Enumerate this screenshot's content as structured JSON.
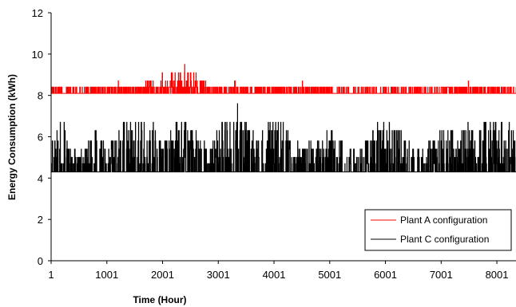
{
  "chart_data": {
    "type": "line",
    "title": "",
    "xlabel": "Time (Hour)",
    "ylabel": "Energy Consumption (kWh)",
    "xlim": [
      1,
      8760
    ],
    "ylim": [
      0,
      12
    ],
    "x_ticks": [
      "1",
      "1001",
      "2001",
      "3001",
      "4001",
      "5001",
      "6001",
      "7001",
      "8001"
    ],
    "y_ticks": [
      "0",
      "2",
      "4",
      "6",
      "8",
      "10",
      "12"
    ],
    "grid": false,
    "legend_position": "bottom-right",
    "series": [
      {
        "name": "Plant A configuration",
        "color": "#ff0000",
        "pattern": {
          "base": 8.1,
          "levels": [
            8.1,
            8.4,
            8.7,
            9.1
          ],
          "max": 9.5,
          "max_x": 2400,
          "sample": [
            [
              1,
              8.7
            ],
            [
              100,
              8.4
            ],
            [
              200,
              8.1
            ],
            [
              400,
              8.4
            ],
            [
              600,
              8.1
            ],
            [
              700,
              8.7
            ],
            [
              1001,
              8.4
            ],
            [
              1200,
              8.7
            ],
            [
              1500,
              8.4
            ],
            [
              1700,
              8.7
            ],
            [
              2001,
              9.1
            ],
            [
              2400,
              9.5
            ],
            [
              2800,
              8.7
            ],
            [
              3001,
              8.4
            ],
            [
              3300,
              8.7
            ],
            [
              3500,
              8.4
            ],
            [
              3800,
              8.7
            ],
            [
              4001,
              8.4
            ],
            [
              4500,
              8.7
            ],
            [
              5001,
              8.4
            ],
            [
              5500,
              8.1
            ],
            [
              6001,
              8.4
            ],
            [
              6500,
              8.1
            ],
            [
              7001,
              8.4
            ],
            [
              7500,
              8.7
            ],
            [
              8001,
              8.4
            ],
            [
              8760,
              8.1
            ]
          ]
        }
      },
      {
        "name": "Plant C configuration",
        "color": "#000000",
        "pattern": {
          "base": 4.3,
          "levels": [
            4.3,
            4.7,
            5.0,
            5.4,
            5.8,
            6.3,
            6.7
          ],
          "max": 7.6,
          "max_x": 3350,
          "sample": [
            [
              1,
              5.4
            ],
            [
              200,
              6.3
            ],
            [
              500,
              4.7
            ],
            [
              800,
              5.8
            ],
            [
              1001,
              5.0
            ],
            [
              1300,
              6.3
            ],
            [
              1700,
              6.7
            ],
            [
              2001,
              5.4
            ],
            [
              2400,
              6.7
            ],
            [
              2800,
              5.0
            ],
            [
              3001,
              5.8
            ],
            [
              3350,
              7.6
            ],
            [
              3700,
              5.4
            ],
            [
              4001,
              6.7
            ],
            [
              4500,
              5.0
            ],
            [
              5001,
              5.8
            ],
            [
              5500,
              4.7
            ],
            [
              6001,
              6.7
            ],
            [
              6500,
              5.0
            ],
            [
              7001,
              5.8
            ],
            [
              7500,
              6.3
            ],
            [
              8001,
              6.7
            ],
            [
              8500,
              5.4
            ],
            [
              8760,
              4.7
            ]
          ]
        }
      }
    ]
  }
}
